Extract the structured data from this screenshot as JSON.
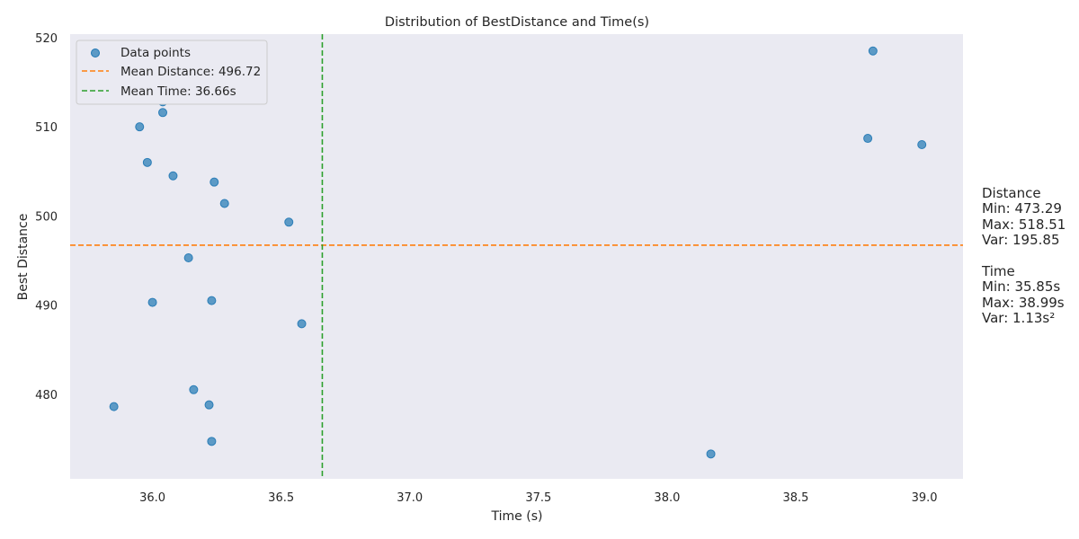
{
  "chart_data": {
    "type": "scatter",
    "title": "Distribution of BestDistance and Time(s)",
    "xlabel": "Time (s)",
    "ylabel": "Best Distance",
    "xlim": [
      35.68,
      39.15
    ],
    "ylim": [
      470.5,
      520.4
    ],
    "xticks": [
      36.0,
      36.5,
      37.0,
      37.5,
      38.0,
      38.5,
      39.0
    ],
    "xtick_labels": [
      "36.0",
      "36.5",
      "37.0",
      "37.5",
      "38.0",
      "38.5",
      "39.0"
    ],
    "yticks": [
      480,
      490,
      500,
      510,
      520
    ],
    "ytick_labels": [
      "480",
      "490",
      "500",
      "510",
      "520"
    ],
    "grid": false,
    "legend_position": "top-left",
    "series": [
      {
        "name": "Data points",
        "color": "#1f77b4",
        "points": [
          {
            "x": 35.85,
            "y": 478.6
          },
          {
            "x": 35.95,
            "y": 510.0
          },
          {
            "x": 35.98,
            "y": 506.0
          },
          {
            "x": 36.0,
            "y": 490.3
          },
          {
            "x": 36.04,
            "y": 511.6
          },
          {
            "x": 36.04,
            "y": 512.8
          },
          {
            "x": 36.08,
            "y": 504.5
          },
          {
            "x": 36.14,
            "y": 495.3
          },
          {
            "x": 36.16,
            "y": 480.5
          },
          {
            "x": 36.22,
            "y": 478.8
          },
          {
            "x": 36.23,
            "y": 474.7
          },
          {
            "x": 36.23,
            "y": 490.5
          },
          {
            "x": 36.24,
            "y": 503.8
          },
          {
            "x": 36.28,
            "y": 501.4
          },
          {
            "x": 36.53,
            "y": 499.3
          },
          {
            "x": 36.58,
            "y": 487.9
          },
          {
            "x": 38.17,
            "y": 473.29
          },
          {
            "x": 38.78,
            "y": 508.7
          },
          {
            "x": 38.8,
            "y": 518.51
          },
          {
            "x": 38.99,
            "y": 508.0
          }
        ]
      }
    ],
    "reference_lines": [
      {
        "name": "Mean Distance: 496.72",
        "orientation": "horizontal",
        "value": 496.72,
        "color": "#ff7f0e",
        "style": "dashed"
      },
      {
        "name": "Mean Time: 36.66s",
        "orientation": "vertical",
        "value": 36.66,
        "color": "#2ca02c",
        "style": "dashed"
      }
    ],
    "plot_background": "#eaeaf2"
  },
  "stats": {
    "distance_header": "Distance",
    "distance_min": "Min: 473.29",
    "distance_max": "Max: 518.51",
    "distance_var": "Var: 195.85",
    "time_header": "Time",
    "time_min": "Min: 35.85s",
    "time_max": "Max: 38.99s",
    "time_var": "Var: 1.13s²"
  }
}
